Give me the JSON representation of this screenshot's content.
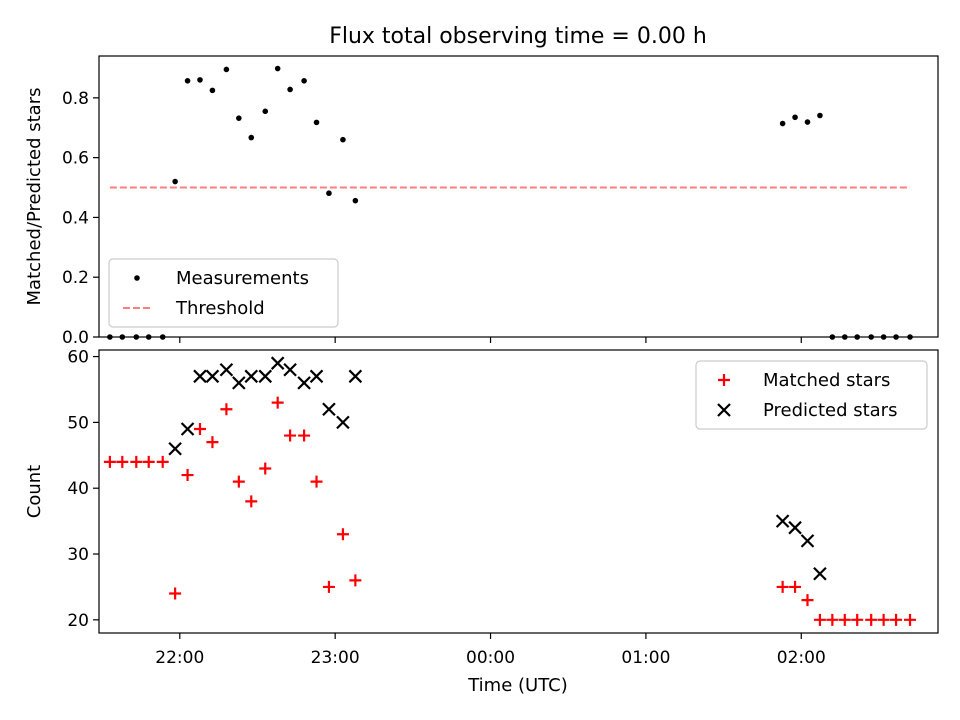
{
  "chart_data": {
    "type": "scatter",
    "title": "Flux total observing time = 0.00 h",
    "xlabel": "Time (UTC)",
    "x_unit": "hour of day (UTC)",
    "xlim": [
      21.48,
      26.88
    ],
    "xticks": [
      {
        "x": 22,
        "label": "22:00"
      },
      {
        "x": 23,
        "label": "23:00"
      },
      {
        "x": 24,
        "label": "00:00"
      },
      {
        "x": 25,
        "label": "01:00"
      },
      {
        "x": 26,
        "label": "02:00"
      }
    ],
    "panels": [
      {
        "ylabel": "Matched/Predicted stars",
        "ylim": [
          0,
          0.94
        ],
        "yticks": [
          {
            "v": 0.0,
            "label": "0.0"
          },
          {
            "v": 0.2,
            "label": "0.2"
          },
          {
            "v": 0.4,
            "label": "0.4"
          },
          {
            "v": 0.6,
            "label": "0.6"
          },
          {
            "v": 0.8,
            "label": "0.8"
          }
        ],
        "legend": {
          "position": "lower-left",
          "entries": [
            {
              "label": "Measurements",
              "marker": "dot",
              "color": "#000000"
            },
            {
              "label": "Threshold",
              "marker": "dash",
              "color": "#ff7f7f"
            }
          ]
        },
        "series": [
          {
            "name": "Measurements",
            "marker": "dot",
            "color": "#000000",
            "x": [
              21.55,
              21.63,
              21.72,
              21.8,
              21.89,
              21.97,
              22.05,
              22.13,
              22.21,
              22.3,
              22.38,
              22.46,
              22.55,
              22.63,
              22.71,
              22.8,
              22.88,
              22.96,
              23.05,
              23.13,
              26.2,
              26.28,
              26.36,
              26.45,
              26.53,
              26.61,
              26.7
            ],
            "y": [
              0.0,
              0.0,
              0.0,
              0.0,
              0.0,
              0.52,
              0.857,
              0.86,
              0.825,
              0.895,
              0.732,
              0.667,
              0.755,
              0.898,
              0.828,
              0.857,
              0.718,
              0.481,
              0.66,
              0.456,
              0.0,
              0.0,
              0.0,
              0.0,
              0.0,
              0.0,
              0.0
            ]
          },
          {
            "name": "Measurements",
            "marker": "dot",
            "color": "#000000",
            "x": [
              25.88,
              25.96,
              26.04,
              26.12
            ],
            "y": [
              0.714,
              0.735,
              0.719,
              0.741
            ]
          },
          {
            "name": "Threshold",
            "marker": "dash",
            "color": "#ff7f7f",
            "x": [
              21.55,
              26.7
            ],
            "y": [
              0.5,
              0.5
            ]
          }
        ]
      },
      {
        "ylabel": "Count",
        "ylim": [
          18,
          61
        ],
        "yticks": [
          {
            "v": 20,
            "label": "20"
          },
          {
            "v": 30,
            "label": "30"
          },
          {
            "v": 40,
            "label": "40"
          },
          {
            "v": 50,
            "label": "50"
          },
          {
            "v": 60,
            "label": "60"
          }
        ],
        "legend": {
          "position": "upper-right",
          "entries": [
            {
              "label": "Matched stars",
              "marker": "plus",
              "color": "#ff0000"
            },
            {
              "label": "Predicted stars",
              "marker": "x",
              "color": "#000000"
            }
          ]
        },
        "series": [
          {
            "name": "Matched stars",
            "marker": "plus",
            "color": "#ff0000",
            "x": [
              21.55,
              21.63,
              21.72,
              21.8,
              21.89,
              21.97,
              22.05,
              22.13,
              22.21,
              22.3,
              22.38,
              22.46,
              22.55,
              22.63,
              22.71,
              22.8,
              22.88,
              22.96,
              23.05,
              23.13,
              25.88,
              25.96,
              26.04,
              26.12,
              26.2,
              26.28,
              26.36,
              26.45,
              26.53,
              26.61,
              26.7
            ],
            "y": [
              44,
              44,
              44,
              44,
              44,
              24,
              42,
              49,
              47,
              52,
              41,
              38,
              43,
              53,
              48,
              48,
              41,
              25,
              33,
              26,
              25,
              25,
              23,
              20,
              20,
              20,
              20,
              20,
              20,
              20,
              20
            ]
          },
          {
            "name": "Predicted stars",
            "marker": "x",
            "color": "#000000",
            "x": [
              21.97,
              22.05,
              22.13,
              22.21,
              22.3,
              22.38,
              22.46,
              22.55,
              22.63,
              22.71,
              22.8,
              22.88,
              22.96,
              23.05,
              23.13,
              25.88,
              25.96,
              26.04,
              26.12
            ],
            "y": [
              46,
              49,
              57,
              57,
              58,
              56,
              57,
              57,
              59,
              58,
              56,
              57,
              52,
              50,
              57,
              35,
              34,
              32,
              27
            ]
          }
        ]
      }
    ]
  }
}
